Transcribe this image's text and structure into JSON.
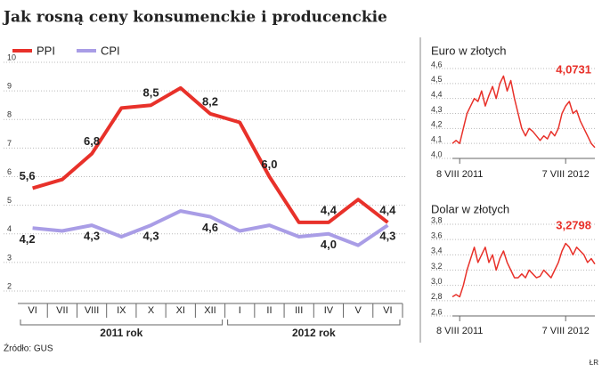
{
  "title": "Jak rosną ceny konsumenckie i producenckie",
  "source": "Źródło: GUS",
  "credit": "ŁR",
  "chart_data": [
    {
      "type": "line",
      "categories": [
        "VI",
        "VII",
        "VIII",
        "IX",
        "X",
        "XI",
        "XII",
        "I",
        "II",
        "III",
        "IV",
        "V",
        "VI"
      ],
      "series": [
        {
          "name": "PPI",
          "color": "#e8312a",
          "values": [
            5.6,
            5.9,
            6.8,
            8.4,
            8.5,
            9.1,
            8.2,
            7.9,
            6.0,
            4.4,
            4.4,
            5.2,
            4.4
          ],
          "value_labels": [
            "5,6",
            null,
            "6,8",
            null,
            "8,5",
            null,
            "8,2",
            null,
            "6,0",
            null,
            "4,4",
            null,
            "4,4"
          ]
        },
        {
          "name": "CPI",
          "color": "#a99de6",
          "values": [
            4.2,
            4.1,
            4.3,
            3.9,
            4.3,
            4.8,
            4.6,
            4.1,
            4.3,
            3.9,
            4.0,
            3.6,
            4.3
          ],
          "value_labels": [
            "4,2",
            null,
            "4,3",
            null,
            "4,3",
            null,
            "4,6",
            null,
            null,
            null,
            "4,0",
            null,
            "4,3"
          ]
        }
      ],
      "ylim": [
        2,
        10
      ],
      "yticks": [
        2,
        3,
        4,
        5,
        6,
        7,
        8,
        9,
        10
      ],
      "grid": true,
      "annotations": [
        "2011 rok",
        "2012 rok"
      ]
    },
    {
      "type": "line",
      "title": "Euro w złotych",
      "categories": [
        null,
        null,
        "8 VIII 2011",
        null,
        null,
        null,
        null,
        null,
        null,
        null,
        null,
        null,
        null,
        null,
        null,
        null,
        null,
        null,
        null,
        null,
        null,
        null,
        null,
        null,
        null,
        null,
        null,
        null,
        null,
        null,
        null,
        "7 VIII 2012",
        null,
        null,
        null,
        null,
        null,
        null,
        null,
        null
      ],
      "series": [
        {
          "name": null,
          "color": "#e8312a",
          "values": [
            4.1,
            4.12,
            4.1,
            4.2,
            4.3,
            4.35,
            4.4,
            4.38,
            4.45,
            4.35,
            4.42,
            4.48,
            4.4,
            4.5,
            4.55,
            4.45,
            4.52,
            4.4,
            4.3,
            4.2,
            4.15,
            4.2,
            4.18,
            4.15,
            4.12,
            4.15,
            4.13,
            4.18,
            4.15,
            4.2,
            4.3,
            4.35,
            4.38,
            4.3,
            4.32,
            4.25,
            4.2,
            4.15,
            4.1,
            4.0731
          ],
          "value_labels": [
            null,
            null,
            null,
            null,
            null,
            null,
            null,
            null,
            null,
            null,
            null,
            null,
            null,
            null,
            null,
            null,
            null,
            null,
            null,
            null,
            null,
            null,
            null,
            null,
            null,
            null,
            null,
            null,
            null,
            null,
            null,
            null,
            null,
            null,
            null,
            null,
            null,
            null,
            null,
            "4,0731"
          ]
        }
      ],
      "ylim": [
        4.0,
        4.6
      ],
      "yticks": [
        {
          "value": 4.0,
          "label": "4,0"
        },
        {
          "value": 4.1,
          "label": "4,1"
        },
        {
          "value": 4.2,
          "label": "4,2"
        },
        {
          "value": 4.3,
          "label": "4,3"
        },
        {
          "value": 4.4,
          "label": "4,4"
        },
        {
          "value": 4.5,
          "label": "4,5"
        },
        {
          "value": 4.6,
          "label": "4,6"
        }
      ],
      "grid": true
    },
    {
      "type": "line",
      "title": "Dolar w złotych",
      "categories": [
        null,
        null,
        "8 VIII 2011",
        null,
        null,
        null,
        null,
        null,
        null,
        null,
        null,
        null,
        null,
        null,
        null,
        null,
        null,
        null,
        null,
        null,
        null,
        null,
        null,
        null,
        null,
        null,
        null,
        null,
        null,
        null,
        null,
        "7 VIII 2012",
        null,
        null,
        null,
        null,
        null,
        null,
        null,
        null
      ],
      "series": [
        {
          "name": null,
          "color": "#e8312a",
          "values": [
            2.85,
            2.88,
            2.85,
            3.0,
            3.2,
            3.35,
            3.5,
            3.3,
            3.4,
            3.5,
            3.3,
            3.4,
            3.2,
            3.35,
            3.45,
            3.3,
            3.2,
            3.1,
            3.1,
            3.15,
            3.1,
            3.2,
            3.15,
            3.1,
            3.12,
            3.2,
            3.15,
            3.1,
            3.2,
            3.3,
            3.45,
            3.55,
            3.5,
            3.4,
            3.5,
            3.45,
            3.4,
            3.3,
            3.35,
            3.2798
          ],
          "value_labels": [
            null,
            null,
            null,
            null,
            null,
            null,
            null,
            null,
            null,
            null,
            null,
            null,
            null,
            null,
            null,
            null,
            null,
            null,
            null,
            null,
            null,
            null,
            null,
            null,
            null,
            null,
            null,
            null,
            null,
            null,
            null,
            null,
            null,
            null,
            null,
            null,
            null,
            null,
            null,
            "3,2798"
          ]
        }
      ],
      "ylim": [
        2.6,
        3.8
      ],
      "yticks": [
        {
          "value": 2.6,
          "label": "2,6"
        },
        {
          "value": 2.8,
          "label": "2,8"
        },
        {
          "value": 3.0,
          "label": "3,0"
        },
        {
          "value": 3.2,
          "label": "3,2"
        },
        {
          "value": 3.4,
          "label": "3,4"
        },
        {
          "value": 3.6,
          "label": "3,6"
        },
        {
          "value": 3.8,
          "label": "3,8"
        }
      ],
      "grid": true
    }
  ]
}
